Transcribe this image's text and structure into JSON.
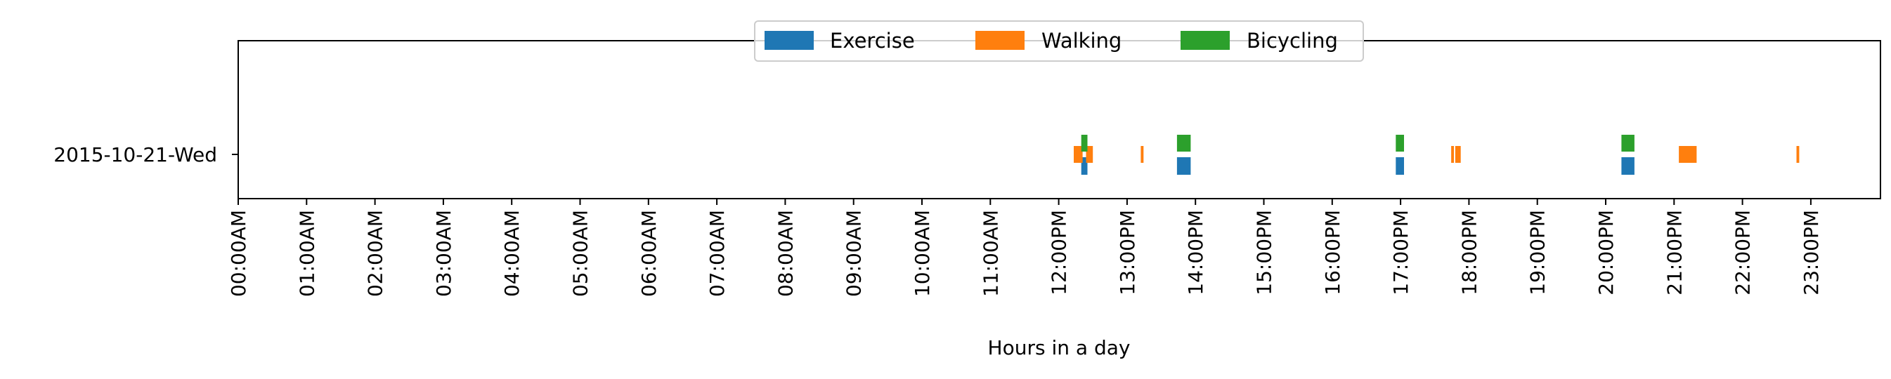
{
  "chart_data": {
    "type": "timeline",
    "xlabel": "Hours in a day",
    "xlim": [
      0,
      24
    ],
    "x_ticks": [
      {
        "value": 0,
        "label": "00:00AM"
      },
      {
        "value": 1,
        "label": "01:00AM"
      },
      {
        "value": 2,
        "label": "02:00AM"
      },
      {
        "value": 3,
        "label": "03:00AM"
      },
      {
        "value": 4,
        "label": "04:00AM"
      },
      {
        "value": 5,
        "label": "05:00AM"
      },
      {
        "value": 6,
        "label": "06:00AM"
      },
      {
        "value": 7,
        "label": "07:00AM"
      },
      {
        "value": 8,
        "label": "08:00AM"
      },
      {
        "value": 9,
        "label": "09:00AM"
      },
      {
        "value": 10,
        "label": "10:00AM"
      },
      {
        "value": 11,
        "label": "11:00AM"
      },
      {
        "value": 12,
        "label": "12:00PM"
      },
      {
        "value": 13,
        "label": "13:00PM"
      },
      {
        "value": 14,
        "label": "14:00PM"
      },
      {
        "value": 15,
        "label": "15:00PM"
      },
      {
        "value": 16,
        "label": "16:00PM"
      },
      {
        "value": 17,
        "label": "17:00PM"
      },
      {
        "value": 18,
        "label": "18:00PM"
      },
      {
        "value": 19,
        "label": "19:00PM"
      },
      {
        "value": 20,
        "label": "20:00PM"
      },
      {
        "value": 21,
        "label": "21:00PM"
      },
      {
        "value": 22,
        "label": "22:00PM"
      },
      {
        "value": 23,
        "label": "23:00PM"
      }
    ],
    "categories": [
      "2015-10-21-Wed"
    ],
    "legend": {
      "placement": "top-center",
      "columns": 3
    },
    "grid": false,
    "series": [
      {
        "name": "Exercise",
        "color": "#1f77b4",
        "intervals": [
          {
            "start": 12.33,
            "end": 12.42
          },
          {
            "start": 13.73,
            "end": 13.93
          },
          {
            "start": 16.93,
            "end": 17.05
          },
          {
            "start": 20.23,
            "end": 20.42
          }
        ]
      },
      {
        "name": "Walking",
        "color": "#ff7f0e",
        "intervals": [
          {
            "start": 12.22,
            "end": 12.35
          },
          {
            "start": 12.4,
            "end": 12.5
          },
          {
            "start": 13.2,
            "end": 13.24
          },
          {
            "start": 17.74,
            "end": 17.78
          },
          {
            "start": 17.8,
            "end": 17.88
          },
          {
            "start": 21.07,
            "end": 21.33
          },
          {
            "start": 22.79,
            "end": 22.83
          }
        ]
      },
      {
        "name": "Bicycling",
        "color": "#2ca02c",
        "intervals": [
          {
            "start": 12.33,
            "end": 12.42
          },
          {
            "start": 13.73,
            "end": 13.93
          },
          {
            "start": 16.93,
            "end": 17.05
          },
          {
            "start": 20.23,
            "end": 20.42
          }
        ]
      }
    ]
  }
}
